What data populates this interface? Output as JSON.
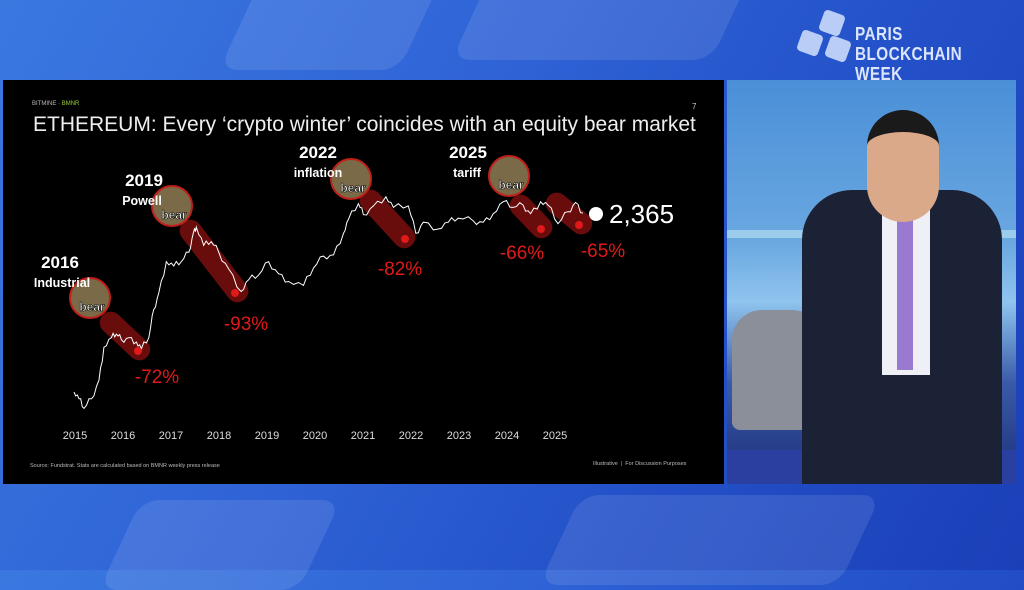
{
  "event_logo": {
    "line1": "PARIS",
    "line2": "BLOCKCHAIN WEEK"
  },
  "slide": {
    "brand": "BITMINE",
    "ticker": "BMNR",
    "page_number": "7",
    "title": "ETHEREUM: Every ‘crypto winter’ coincides with an equity bear market",
    "source": "Source: Fundstrat. Stats are calculated based on BMNR weekly press release",
    "disclaimer": "Illustrative  |  For Discussion Purposes"
  },
  "chart_data": {
    "type": "line",
    "title": "",
    "xlabel": "",
    "ylabel": "",
    "y_scale": "log",
    "grid": false,
    "x_ticks": [
      "2015",
      "2016",
      "2017",
      "2018",
      "2019",
      "2020",
      "2021",
      "2022",
      "2023",
      "2024",
      "2025"
    ],
    "series": [
      {
        "color": "#ffffff",
        "x": [
          2015.6,
          2015.7,
          2015.8,
          2015.95,
          2016.1,
          2016.2,
          2016.35,
          2016.45,
          2016.55,
          2016.7,
          2016.85,
          2016.95,
          2017.1,
          2017.2,
          2017.3,
          2017.45,
          2017.6,
          2017.75,
          2017.9,
          2018.0,
          2018.05,
          2018.2,
          2018.35,
          2018.5,
          2018.7,
          2018.95,
          2019.1,
          2019.3,
          2019.5,
          2019.7,
          2019.9,
          2020.2,
          2020.4,
          2020.6,
          2020.8,
          2021.0,
          2021.1,
          2021.3,
          2021.4,
          2021.6,
          2021.85,
          2022.0,
          2022.3,
          2022.45,
          2022.6,
          2022.9,
          2023.1,
          2023.3,
          2023.6,
          2023.8,
          2024.0,
          2024.2,
          2024.4,
          2024.6,
          2024.75,
          2024.95,
          2025.1,
          2025.3,
          2025.5,
          2025.65,
          2025.8
        ],
        "y": [
          1.2,
          0.9,
          0.6,
          0.9,
          2,
          8,
          12,
          14,
          11,
          12,
          10,
          7.5,
          12,
          40,
          80,
          300,
          250,
          300,
          450,
          1100,
          1300,
          600,
          700,
          450,
          220,
          85,
          140,
          170,
          300,
          180,
          130,
          110,
          230,
          380,
          400,
          1000,
          1800,
          3500,
          2200,
          3200,
          4700,
          3000,
          3200,
          1000,
          1600,
          1200,
          1600,
          1900,
          1700,
          1600,
          2300,
          3800,
          3000,
          3300,
          2300,
          3800,
          3300,
          1500,
          2500,
          3700,
          2365
        ]
      }
    ],
    "last_value_label": "2,365",
    "bear_markets": [
      {
        "year": "2016",
        "cause": "Industrial",
        "tag": "bear",
        "drawdown": "-72%"
      },
      {
        "year": "2019",
        "cause": "Powell",
        "tag": "bear",
        "drawdown": "-93%"
      },
      {
        "year": "2022",
        "cause": "inflation",
        "tag": "bear",
        "drawdown": "-82%"
      },
      {
        "year": "2025",
        "cause": "tariff",
        "tag": "bear",
        "drawdown": "-66%"
      },
      {
        "year": "",
        "cause": "",
        "tag": "",
        "drawdown": "-65%"
      }
    ],
    "colors": {
      "line": "#ffffff",
      "drawdown": "#e01a1a",
      "highlight": "#8b1010"
    }
  }
}
